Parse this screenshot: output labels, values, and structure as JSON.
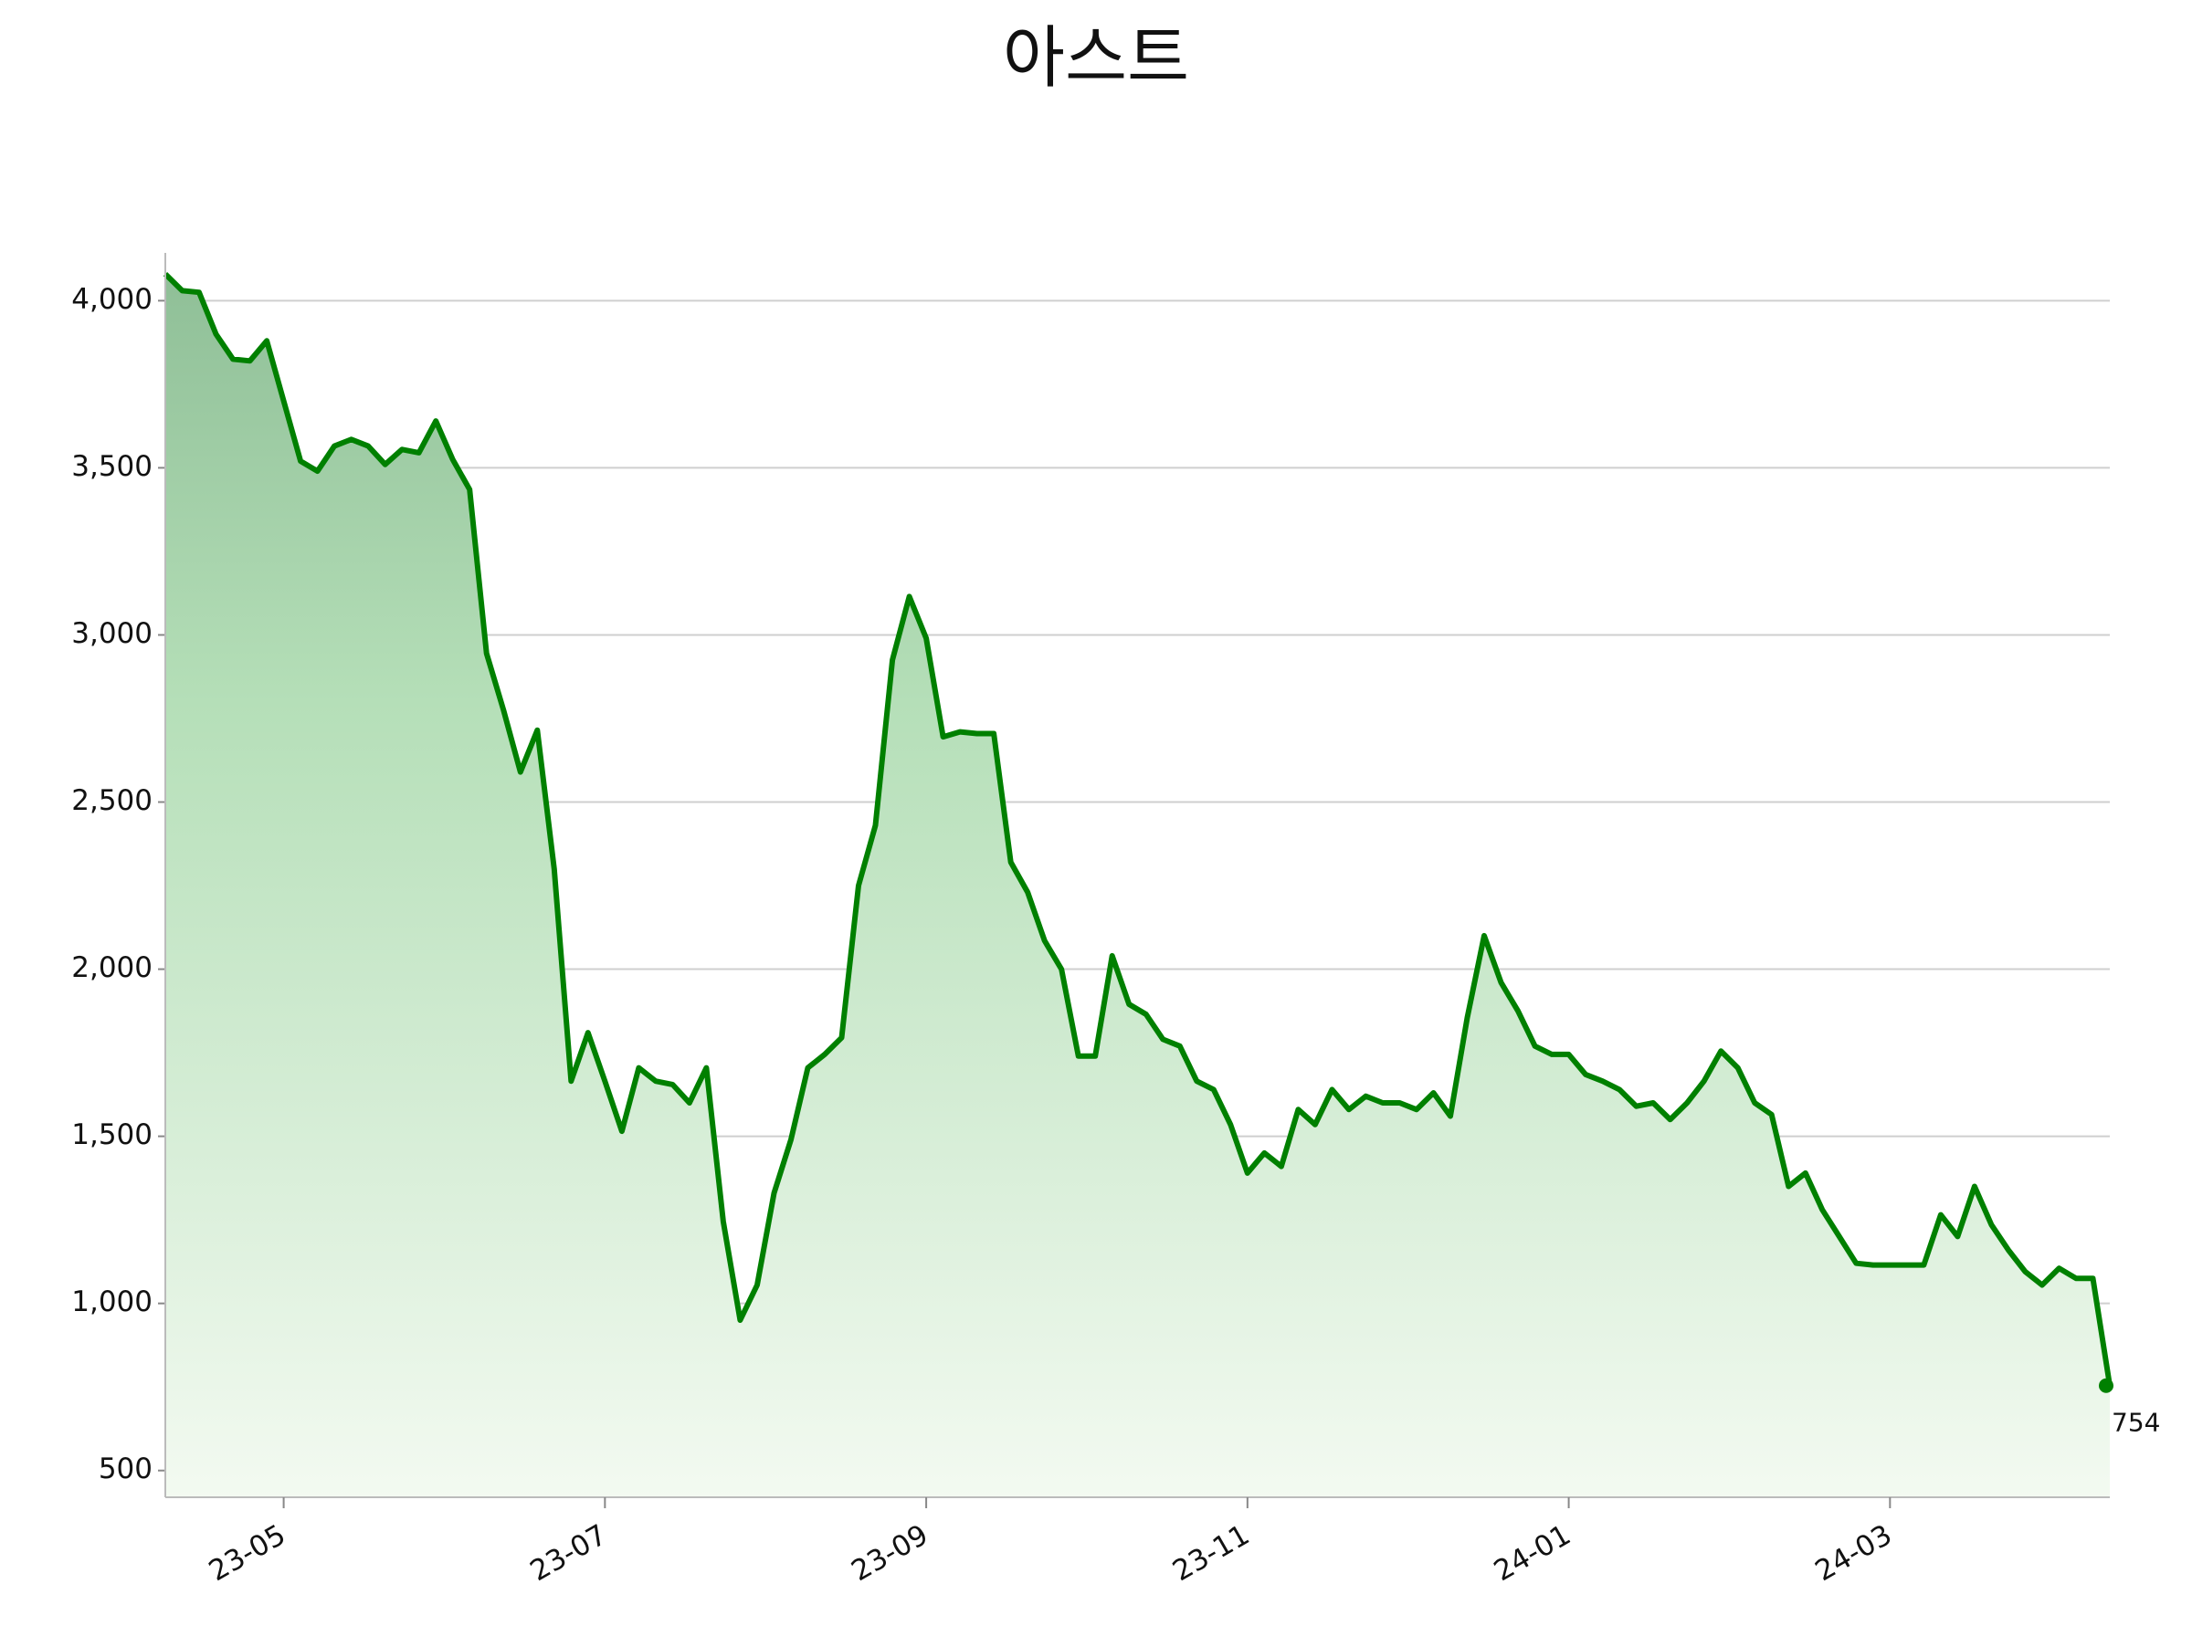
{
  "chart_data": {
    "type": "line",
    "title": "아스트",
    "color": "#008000",
    "x": [
      "23-04",
      "23-04",
      "23-04",
      "23-04",
      "23-04",
      "23-04",
      "23-04",
      "23-05",
      "23-05",
      "23-05",
      "23-05",
      "23-05",
      "23-05",
      "23-05",
      "23-05",
      "23-05",
      "23-05",
      "23-06",
      "23-06",
      "23-06",
      "23-06",
      "23-06",
      "23-06",
      "23-06",
      "23-06",
      "23-06",
      "23-07",
      "23-07",
      "23-07",
      "23-07",
      "23-07",
      "23-07",
      "23-07",
      "23-07",
      "23-07",
      "23-07",
      "23-08",
      "23-08",
      "23-08",
      "23-08",
      "23-08",
      "23-08",
      "23-08",
      "23-08",
      "23-08",
      "23-09",
      "23-09",
      "23-09",
      "23-09",
      "23-09",
      "23-09",
      "23-09",
      "23-09",
      "23-09",
      "23-09",
      "23-10",
      "23-10",
      "23-10",
      "23-10",
      "23-10",
      "23-10",
      "23-10",
      "23-10",
      "23-10",
      "23-11",
      "23-11",
      "23-11",
      "23-11",
      "23-11",
      "23-11",
      "23-11",
      "23-11",
      "23-11",
      "23-11",
      "23-12",
      "23-12",
      "23-12",
      "23-12",
      "23-12",
      "23-12",
      "23-12",
      "23-12",
      "23-12",
      "24-01",
      "24-01",
      "24-01",
      "24-01",
      "24-01",
      "24-01",
      "24-01",
      "24-01",
      "24-01",
      "24-01",
      "24-02",
      "24-02",
      "24-02",
      "24-02",
      "24-02",
      "24-02",
      "24-02",
      "24-02",
      "24-02",
      "24-03",
      "24-03",
      "24-03",
      "24-03",
      "24-03",
      "24-03",
      "24-03",
      "24-03",
      "24-03",
      "24-03",
      "24-04",
      "24-04",
      "24-04",
      "24-04"
    ],
    "values": [
      4080,
      4030,
      4025,
      3900,
      3825,
      3820,
      3880,
      3700,
      3520,
      3490,
      3565,
      3585,
      3565,
      3510,
      3555,
      3545,
      3640,
      3525,
      3435,
      2945,
      2775,
      2590,
      2715,
      2300,
      1665,
      1810,
      1665,
      1515,
      1705,
      1665,
      1655,
      1600,
      1705,
      1245,
      950,
      1055,
      1330,
      1490,
      1705,
      1745,
      1795,
      2250,
      2430,
      2925,
      3115,
      2990,
      2695,
      2710,
      2705,
      2705,
      2320,
      2230,
      2085,
      2000,
      1740,
      1740,
      2040,
      1895,
      1865,
      1790,
      1770,
      1665,
      1640,
      1535,
      1390,
      1450,
      1410,
      1580,
      1535,
      1640,
      1580,
      1620,
      1600,
      1600,
      1580,
      1630,
      1560,
      1855,
      2100,
      1960,
      1875,
      1770,
      1745,
      1745,
      1685,
      1665,
      1640,
      1590,
      1600,
      1550,
      1600,
      1665,
      1755,
      1705,
      1600,
      1565,
      1350,
      1390,
      1280,
      1200,
      1120,
      1115,
      1115,
      1115,
      1115,
      1265,
      1200,
      1350,
      1235,
      1160,
      1095,
      1055,
      1105,
      1075,
      1075,
      754
    ],
    "value_labels_last": null,
    "xticks": [
      "23-05",
      "23-07",
      "23-09",
      "23-11",
      "24-01",
      "24-03"
    ],
    "ylim": [
      420,
      4143
    ],
    "yticks": [
      500,
      {
        "value": 1000,
        "label": "1,000"
      },
      {
        "value": 1500,
        "label": "1,500"
      },
      {
        "value": 2000,
        "label": "2,000"
      },
      {
        "value": 2500,
        "label": "2,500"
      },
      {
        "value": 3000,
        "label": "3,000"
      },
      {
        "value": 3500,
        "label": "3,500"
      },
      {
        "value": 4000,
        "label": "4,000"
      }
    ],
    "grid": true
  }
}
